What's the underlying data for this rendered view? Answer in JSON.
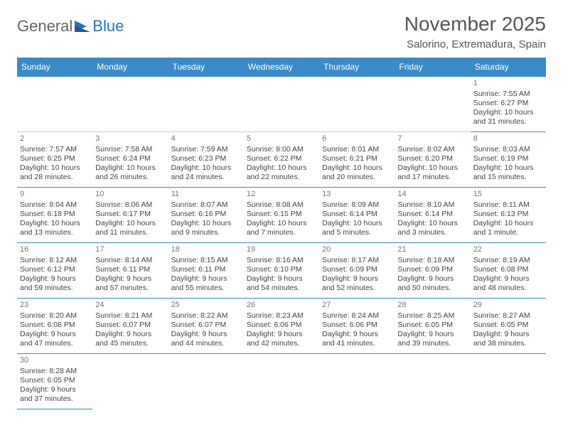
{
  "logo": {
    "text1": "General",
    "text2": "Blue"
  },
  "title": "November 2025",
  "location": "Salorino, Extremadura, Spain",
  "colors": {
    "header_bg": "#3b8bc9",
    "header_text": "#ffffff",
    "border": "#3b8bc9",
    "empty_border": "#cccccc",
    "logo_gray": "#666666",
    "logo_blue": "#2a73b8"
  },
  "day_headers": [
    "Sunday",
    "Monday",
    "Tuesday",
    "Wednesday",
    "Thursday",
    "Friday",
    "Saturday"
  ],
  "weeks": [
    [
      null,
      null,
      null,
      null,
      null,
      null,
      {
        "n": "1",
        "sr": "Sunrise: 7:55 AM",
        "ss": "Sunset: 6:27 PM",
        "dl": "Daylight: 10 hours and 31 minutes."
      }
    ],
    [
      {
        "n": "2",
        "sr": "Sunrise: 7:57 AM",
        "ss": "Sunset: 6:25 PM",
        "dl": "Daylight: 10 hours and 28 minutes."
      },
      {
        "n": "3",
        "sr": "Sunrise: 7:58 AM",
        "ss": "Sunset: 6:24 PM",
        "dl": "Daylight: 10 hours and 26 minutes."
      },
      {
        "n": "4",
        "sr": "Sunrise: 7:59 AM",
        "ss": "Sunset: 6:23 PM",
        "dl": "Daylight: 10 hours and 24 minutes."
      },
      {
        "n": "5",
        "sr": "Sunrise: 8:00 AM",
        "ss": "Sunset: 6:22 PM",
        "dl": "Daylight: 10 hours and 22 minutes."
      },
      {
        "n": "6",
        "sr": "Sunrise: 8:01 AM",
        "ss": "Sunset: 6:21 PM",
        "dl": "Daylight: 10 hours and 20 minutes."
      },
      {
        "n": "7",
        "sr": "Sunrise: 8:02 AM",
        "ss": "Sunset: 6:20 PM",
        "dl": "Daylight: 10 hours and 17 minutes."
      },
      {
        "n": "8",
        "sr": "Sunrise: 8:03 AM",
        "ss": "Sunset: 6:19 PM",
        "dl": "Daylight: 10 hours and 15 minutes."
      }
    ],
    [
      {
        "n": "9",
        "sr": "Sunrise: 8:04 AM",
        "ss": "Sunset: 6:18 PM",
        "dl": "Daylight: 10 hours and 13 minutes."
      },
      {
        "n": "10",
        "sr": "Sunrise: 8:06 AM",
        "ss": "Sunset: 6:17 PM",
        "dl": "Daylight: 10 hours and 11 minutes."
      },
      {
        "n": "11",
        "sr": "Sunrise: 8:07 AM",
        "ss": "Sunset: 6:16 PM",
        "dl": "Daylight: 10 hours and 9 minutes."
      },
      {
        "n": "12",
        "sr": "Sunrise: 8:08 AM",
        "ss": "Sunset: 6:15 PM",
        "dl": "Daylight: 10 hours and 7 minutes."
      },
      {
        "n": "13",
        "sr": "Sunrise: 8:09 AM",
        "ss": "Sunset: 6:14 PM",
        "dl": "Daylight: 10 hours and 5 minutes."
      },
      {
        "n": "14",
        "sr": "Sunrise: 8:10 AM",
        "ss": "Sunset: 6:14 PM",
        "dl": "Daylight: 10 hours and 3 minutes."
      },
      {
        "n": "15",
        "sr": "Sunrise: 8:11 AM",
        "ss": "Sunset: 6:13 PM",
        "dl": "Daylight: 10 hours and 1 minute."
      }
    ],
    [
      {
        "n": "16",
        "sr": "Sunrise: 8:12 AM",
        "ss": "Sunset: 6:12 PM",
        "dl": "Daylight: 9 hours and 59 minutes."
      },
      {
        "n": "17",
        "sr": "Sunrise: 8:14 AM",
        "ss": "Sunset: 6:11 PM",
        "dl": "Daylight: 9 hours and 57 minutes."
      },
      {
        "n": "18",
        "sr": "Sunrise: 8:15 AM",
        "ss": "Sunset: 6:11 PM",
        "dl": "Daylight: 9 hours and 55 minutes."
      },
      {
        "n": "19",
        "sr": "Sunrise: 8:16 AM",
        "ss": "Sunset: 6:10 PM",
        "dl": "Daylight: 9 hours and 54 minutes."
      },
      {
        "n": "20",
        "sr": "Sunrise: 8:17 AM",
        "ss": "Sunset: 6:09 PM",
        "dl": "Daylight: 9 hours and 52 minutes."
      },
      {
        "n": "21",
        "sr": "Sunrise: 8:18 AM",
        "ss": "Sunset: 6:09 PM",
        "dl": "Daylight: 9 hours and 50 minutes."
      },
      {
        "n": "22",
        "sr": "Sunrise: 8:19 AM",
        "ss": "Sunset: 6:08 PM",
        "dl": "Daylight: 9 hours and 48 minutes."
      }
    ],
    [
      {
        "n": "23",
        "sr": "Sunrise: 8:20 AM",
        "ss": "Sunset: 6:08 PM",
        "dl": "Daylight: 9 hours and 47 minutes."
      },
      {
        "n": "24",
        "sr": "Sunrise: 8:21 AM",
        "ss": "Sunset: 6:07 PM",
        "dl": "Daylight: 9 hours and 45 minutes."
      },
      {
        "n": "25",
        "sr": "Sunrise: 8:22 AM",
        "ss": "Sunset: 6:07 PM",
        "dl": "Daylight: 9 hours and 44 minutes."
      },
      {
        "n": "26",
        "sr": "Sunrise: 8:23 AM",
        "ss": "Sunset: 6:06 PM",
        "dl": "Daylight: 9 hours and 42 minutes."
      },
      {
        "n": "27",
        "sr": "Sunrise: 8:24 AM",
        "ss": "Sunset: 6:06 PM",
        "dl": "Daylight: 9 hours and 41 minutes."
      },
      {
        "n": "28",
        "sr": "Sunrise: 8:25 AM",
        "ss": "Sunset: 6:05 PM",
        "dl": "Daylight: 9 hours and 39 minutes."
      },
      {
        "n": "29",
        "sr": "Sunrise: 8:27 AM",
        "ss": "Sunset: 6:05 PM",
        "dl": "Daylight: 9 hours and 38 minutes."
      }
    ],
    [
      {
        "n": "30",
        "sr": "Sunrise: 8:28 AM",
        "ss": "Sunset: 6:05 PM",
        "dl": "Daylight: 9 hours and 37 minutes."
      },
      null,
      null,
      null,
      null,
      null,
      null
    ]
  ]
}
